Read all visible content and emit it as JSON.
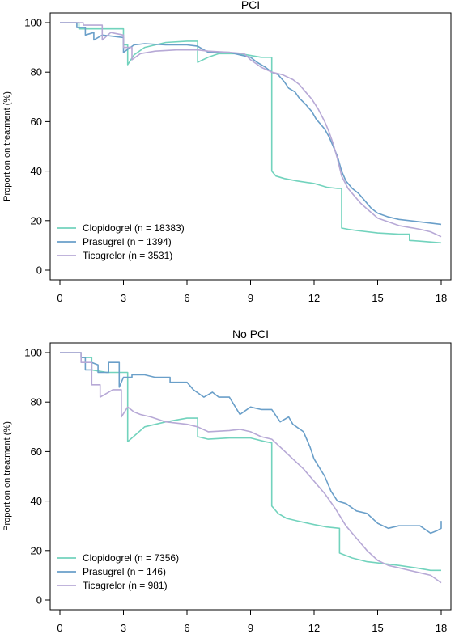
{
  "colors": {
    "clopidogrel": "#72d3bd",
    "prasugrel": "#6a9fc9",
    "ticagrelor": "#b7a9d6"
  },
  "chart_data": [
    {
      "type": "line",
      "title": "PCI",
      "xlabel": "",
      "ylabel": "Proportion on treatment (%)",
      "xlim": [
        0,
        18
      ],
      "ylim": [
        0,
        100
      ],
      "xticks": [
        0,
        3,
        6,
        9,
        12,
        15,
        18
      ],
      "yticks": [
        0,
        20,
        40,
        60,
        80,
        100
      ],
      "grid": false,
      "legend_position": "bottom-left",
      "series": [
        {
          "name": "Clopidogrel (n = 18383)",
          "color_key": "clopidogrel",
          "points": [
            [
              0,
              100
            ],
            [
              0.9,
              100
            ],
            [
              0.9,
              97.5
            ],
            [
              3,
              97.5
            ],
            [
              3,
              91
            ],
            [
              3.2,
              91
            ],
            [
              3.2,
              83
            ],
            [
              3.5,
              87
            ],
            [
              4,
              90
            ],
            [
              5,
              92
            ],
            [
              6,
              92.5
            ],
            [
              6.5,
              92.5
            ],
            [
              6.5,
              84
            ],
            [
              7,
              86
            ],
            [
              7.5,
              87.5
            ],
            [
              8.5,
              87.5
            ],
            [
              9.5,
              86
            ],
            [
              10,
              86
            ],
            [
              10,
              40
            ],
            [
              10.2,
              38
            ],
            [
              10.6,
              37
            ],
            [
              11.2,
              36
            ],
            [
              12,
              35
            ],
            [
              12.6,
              33.5
            ],
            [
              13.1,
              33
            ],
            [
              13.3,
              33
            ],
            [
              13.3,
              17
            ],
            [
              13.6,
              16.5
            ],
            [
              14,
              16
            ],
            [
              15,
              15
            ],
            [
              16,
              14.5
            ],
            [
              16.5,
              14.5
            ],
            [
              16.5,
              12
            ],
            [
              17,
              11.7
            ],
            [
              18,
              11
            ]
          ]
        },
        {
          "name": "Prasugrel (n = 1394)",
          "color_key": "prasugrel",
          "points": [
            [
              0,
              100
            ],
            [
              0.8,
              100
            ],
            [
              0.8,
              98
            ],
            [
              1.2,
              98
            ],
            [
              1.2,
              95
            ],
            [
              1.6,
              96
            ],
            [
              1.6,
              93
            ],
            [
              2,
              95
            ],
            [
              2.5,
              94.5
            ],
            [
              3,
              94
            ],
            [
              3,
              88
            ],
            [
              3.5,
              91
            ],
            [
              4,
              91.5
            ],
            [
              5,
              91
            ],
            [
              6,
              91
            ],
            [
              6.5,
              90.5
            ],
            [
              7,
              88
            ],
            [
              8,
              88
            ],
            [
              8.5,
              87
            ],
            [
              9,
              86
            ],
            [
              9.3,
              84
            ],
            [
              9.7,
              82
            ],
            [
              10,
              80
            ],
            [
              10.3,
              79
            ],
            [
              10.6,
              76
            ],
            [
              10.8,
              73.5
            ],
            [
              11.1,
              72
            ],
            [
              11.3,
              69.5
            ],
            [
              11.6,
              67
            ],
            [
              11.9,
              64
            ],
            [
              12.1,
              61
            ],
            [
              12.3,
              59
            ],
            [
              12.5,
              57
            ],
            [
              12.7,
              54
            ],
            [
              12.9,
              50
            ],
            [
              13.1,
              46
            ],
            [
              13.3,
              40
            ],
            [
              13.5,
              36
            ],
            [
              13.8,
              33
            ],
            [
              14.1,
              31
            ],
            [
              14.4,
              28
            ],
            [
              14.7,
              25
            ],
            [
              15,
              23
            ],
            [
              15.5,
              21.5
            ],
            [
              16,
              20.5
            ],
            [
              17,
              19.5
            ],
            [
              18,
              18.5
            ]
          ]
        },
        {
          "name": "Ticagrelor (n = 3531)",
          "color_key": "ticagrelor",
          "points": [
            [
              0,
              100
            ],
            [
              1.1,
              100
            ],
            [
              1.1,
              99
            ],
            [
              2,
              99
            ],
            [
              2,
              93
            ],
            [
              2.4,
              96
            ],
            [
              3,
              95
            ],
            [
              3,
              90
            ],
            [
              3.4,
              90
            ],
            [
              3.4,
              85
            ],
            [
              3.8,
              87.5
            ],
            [
              4.5,
              88.5
            ],
            [
              5.5,
              89
            ],
            [
              6.5,
              89
            ],
            [
              7,
              88.5
            ],
            [
              8,
              88
            ],
            [
              8.7,
              87.5
            ],
            [
              9,
              85
            ],
            [
              9.5,
              82
            ],
            [
              10,
              80
            ],
            [
              10.5,
              79
            ],
            [
              11,
              77
            ],
            [
              11.3,
              75
            ],
            [
              11.6,
              72
            ],
            [
              11.9,
              69
            ],
            [
              12.2,
              65
            ],
            [
              12.5,
              60
            ],
            [
              12.7,
              56
            ],
            [
              12.9,
              51
            ],
            [
              13.1,
              45
            ],
            [
              13.3,
              38
            ],
            [
              13.6,
              33
            ],
            [
              13.9,
              30
            ],
            [
              14.2,
              27
            ],
            [
              14.6,
              24
            ],
            [
              15,
              21
            ],
            [
              15.5,
              19.5
            ],
            [
              16,
              18
            ],
            [
              17,
              16.5
            ],
            [
              17.5,
              15.5
            ],
            [
              18,
              13.5
            ]
          ]
        }
      ]
    },
    {
      "type": "line",
      "title": "No PCI",
      "xlabel": "",
      "ylabel": "Proportion on treatment (%)",
      "xlim": [
        0,
        18
      ],
      "ylim": [
        0,
        100
      ],
      "xticks": [
        0,
        3,
        6,
        9,
        12,
        15,
        18
      ],
      "yticks": [
        0,
        20,
        40,
        60,
        80,
        100
      ],
      "grid": false,
      "legend_position": "bottom-left",
      "series": [
        {
          "name": "Clopidogrel (n = 7356)",
          "color_key": "clopidogrel",
          "points": [
            [
              0,
              100
            ],
            [
              1,
              100
            ],
            [
              1,
              98
            ],
            [
              1.5,
              98
            ],
            [
              1.5,
              93
            ],
            [
              2.2,
              92
            ],
            [
              3,
              92
            ],
            [
              3.2,
              92
            ],
            [
              3.2,
              64
            ],
            [
              3.6,
              67
            ],
            [
              4,
              70
            ],
            [
              5,
              72
            ],
            [
              6,
              73.5
            ],
            [
              6.5,
              73.5
            ],
            [
              6.5,
              66
            ],
            [
              7,
              65
            ],
            [
              8,
              65.5
            ],
            [
              9,
              65.5
            ],
            [
              9.7,
              64
            ],
            [
              10,
              63.5
            ],
            [
              10,
              38
            ],
            [
              10.3,
              35
            ],
            [
              10.7,
              33
            ],
            [
              11.2,
              32
            ],
            [
              12,
              30.5
            ],
            [
              12.6,
              29.5
            ],
            [
              13.2,
              29
            ],
            [
              13.2,
              19
            ],
            [
              13.8,
              17
            ],
            [
              14.5,
              15.5
            ],
            [
              15,
              15
            ],
            [
              16,
              14
            ],
            [
              16.8,
              13
            ],
            [
              17.5,
              12
            ],
            [
              18,
              12
            ]
          ]
        },
        {
          "name": "Prasugrel (n = 146)",
          "color_key": "prasugrel",
          "points": [
            [
              0,
              100
            ],
            [
              1,
              100
            ],
            [
              1,
              98
            ],
            [
              1.2,
              98
            ],
            [
              1.2,
              93
            ],
            [
              1.5,
              93
            ],
            [
              1.5,
              96
            ],
            [
              1.8,
              95
            ],
            [
              1.8,
              92
            ],
            [
              2.3,
              92
            ],
            [
              2.3,
              96
            ],
            [
              2.8,
              96
            ],
            [
              2.8,
              86
            ],
            [
              3,
              90
            ],
            [
              3.4,
              90
            ],
            [
              3.4,
              91
            ],
            [
              4,
              91
            ],
            [
              4.5,
              90
            ],
            [
              5.2,
              90
            ],
            [
              5.2,
              88
            ],
            [
              6,
              88
            ],
            [
              6.3,
              85
            ],
            [
              6.8,
              82
            ],
            [
              7.2,
              84
            ],
            [
              7.5,
              82
            ],
            [
              8,
              82
            ],
            [
              8.5,
              75
            ],
            [
              9,
              78
            ],
            [
              9.5,
              77
            ],
            [
              10,
              77
            ],
            [
              10.4,
              72
            ],
            [
              10.8,
              74
            ],
            [
              11,
              71
            ],
            [
              11.5,
              68
            ],
            [
              11.8,
              62
            ],
            [
              12,
              57
            ],
            [
              12.5,
              50
            ],
            [
              12.8,
              44
            ],
            [
              13.1,
              40
            ],
            [
              13.5,
              39
            ],
            [
              14,
              36
            ],
            [
              14.5,
              35
            ],
            [
              15,
              31
            ],
            [
              15.5,
              29
            ],
            [
              16,
              30
            ],
            [
              17,
              30
            ],
            [
              17.5,
              27
            ],
            [
              17.8,
              28
            ],
            [
              18,
              29
            ],
            [
              18,
              32
            ]
          ]
        },
        {
          "name": "Ticagrelor (n = 981)",
          "color_key": "ticagrelor",
          "points": [
            [
              0,
              100
            ],
            [
              1,
              100
            ],
            [
              1,
              96
            ],
            [
              1.5,
              96
            ],
            [
              1.5,
              87
            ],
            [
              1.9,
              87
            ],
            [
              1.9,
              82
            ],
            [
              2.5,
              85
            ],
            [
              2.9,
              85
            ],
            [
              2.9,
              74
            ],
            [
              3.2,
              78
            ],
            [
              3.5,
              76
            ],
            [
              3.8,
              75
            ],
            [
              4.3,
              74
            ],
            [
              5,
              72
            ],
            [
              6,
              71
            ],
            [
              6.5,
              70
            ],
            [
              7,
              68
            ],
            [
              8,
              68.5
            ],
            [
              8.5,
              69
            ],
            [
              9,
              68
            ],
            [
              9.5,
              66
            ],
            [
              10,
              65
            ],
            [
              10.5,
              61
            ],
            [
              11,
              57
            ],
            [
              11.5,
              53
            ],
            [
              12,
              48
            ],
            [
              12.5,
              43
            ],
            [
              13,
              37
            ],
            [
              13.5,
              30
            ],
            [
              14,
              25
            ],
            [
              14.5,
              20
            ],
            [
              15,
              16
            ],
            [
              15.5,
              14
            ],
            [
              16,
              13
            ],
            [
              17,
              11
            ],
            [
              17.5,
              10
            ],
            [
              18,
              7
            ]
          ]
        }
      ]
    }
  ]
}
